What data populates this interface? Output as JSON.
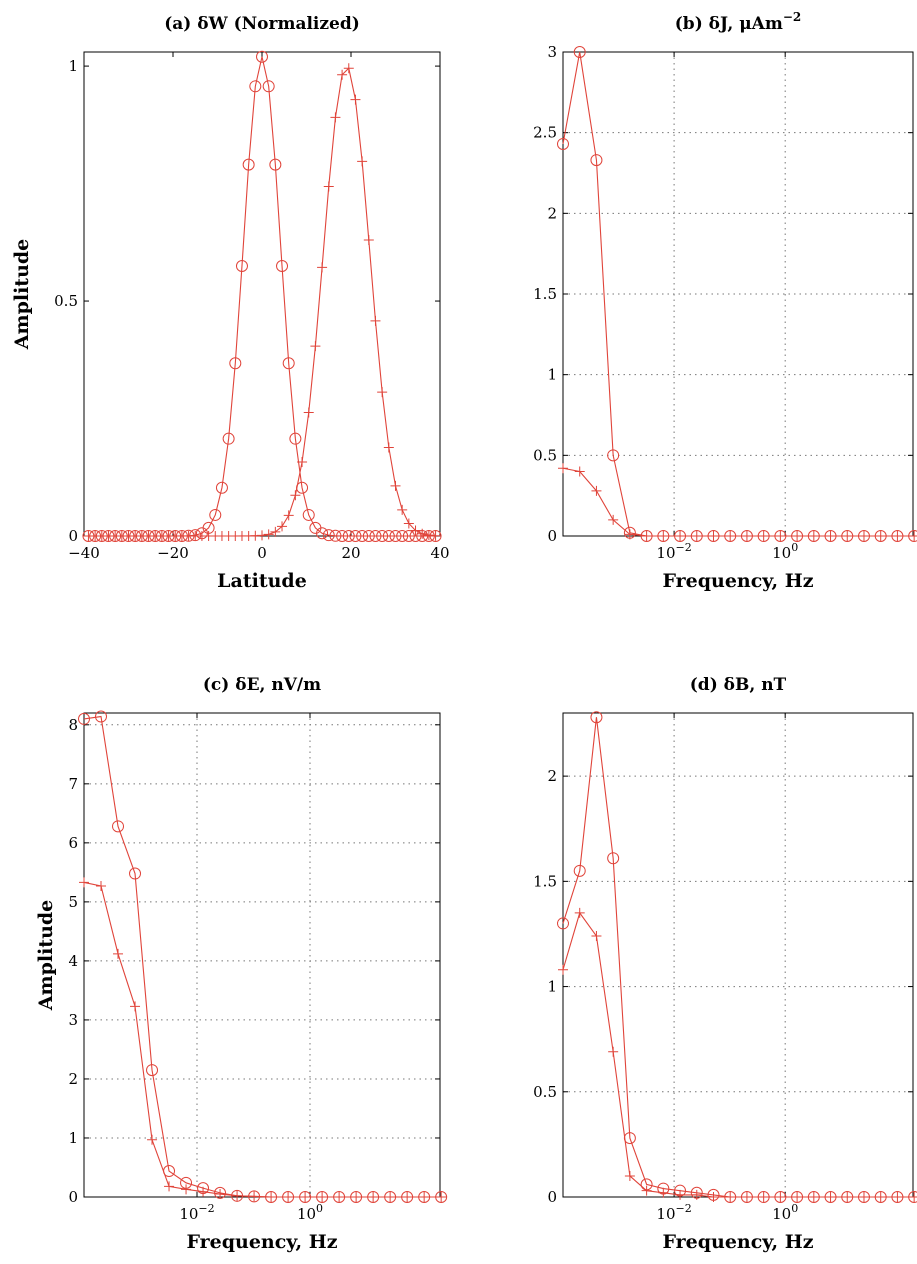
{
  "chart_data": [
    {
      "id": "a",
      "type": "line",
      "title": "(a) δW (Normalized)",
      "xlabel": "Latitude",
      "ylabel": "Amplitude",
      "xscale": "linear",
      "xlim": [
        -40,
        40
      ],
      "ylim": [
        0,
        1.03
      ],
      "grid": false,
      "xticks": [
        {
          "v": -40,
          "label": "−40"
        },
        {
          "v": -20,
          "label": "−20"
        },
        {
          "v": 0,
          "label": "0"
        },
        {
          "v": 20,
          "label": "20"
        },
        {
          "v": 40,
          "label": "40"
        }
      ],
      "yticks": [
        {
          "v": 0,
          "label": "0"
        },
        {
          "v": 0.5,
          "label": "0.5"
        },
        {
          "v": 1,
          "label": "1"
        }
      ],
      "series": [
        {
          "marker": "circle",
          "gauss": {
            "center": 0,
            "sigma": 4.2,
            "step": 1.5,
            "from": -39,
            "to": 39,
            "amplitude": 1.02
          }
        },
        {
          "marker": "plus",
          "gauss": {
            "center": 19,
            "sigma": 5.2,
            "step": 1.5,
            "from": -39,
            "to": 39,
            "amplitude": 1.0
          }
        }
      ]
    },
    {
      "id": "b",
      "type": "line",
      "title": "(b) δJ, μAm",
      "title_sup": "−2",
      "xlabel": "Frequency, Hz",
      "ylabel": "",
      "xscale": "log",
      "xlim": [
        0.0001,
        200
      ],
      "ylim": [
        0,
        3
      ],
      "grid": true,
      "xticks": [
        {
          "v": 0.01,
          "base": "10",
          "exp": "−2"
        },
        {
          "v": 1,
          "base": "10",
          "exp": "0"
        }
      ],
      "yticks": [
        {
          "v": 0,
          "label": "0"
        },
        {
          "v": 0.5,
          "label": "0.5"
        },
        {
          "v": 1,
          "label": "1"
        },
        {
          "v": 1.5,
          "label": "1.5"
        },
        {
          "v": 2,
          "label": "2"
        },
        {
          "v": 2.5,
          "label": "2.5"
        },
        {
          "v": 3,
          "label": "3"
        }
      ],
      "series": [
        {
          "marker": "circle",
          "x": [
            0.0001,
            0.0002,
            0.0004,
            0.0008,
            0.0016,
            0.0032,
            0.0064,
            0.0128,
            0.0256,
            0.0512,
            0.1024,
            0.2048,
            0.4096,
            0.8192,
            1.6384,
            3.2768,
            6.5536,
            13.1072,
            26.2144,
            52.4288,
            104.8576,
            209.7152
          ],
          "y": [
            2.43,
            3.0,
            2.33,
            0.5,
            0.02,
            0.0,
            0.0,
            0.0,
            0.0,
            0.0,
            0.0,
            0.0,
            0.0,
            0.0,
            0.0,
            0.0,
            0.0,
            0.0,
            0.0,
            0.0,
            0.0,
            0.0
          ]
        },
        {
          "marker": "plus",
          "x": [
            0.0001,
            0.0002,
            0.0004,
            0.0008,
            0.0016,
            0.0032,
            0.0064,
            0.0128,
            0.0256,
            0.0512,
            0.1024,
            0.2048,
            0.4096,
            0.8192,
            1.6384,
            3.2768,
            6.5536,
            13.1072,
            26.2144,
            52.4288,
            104.8576,
            209.7152
          ],
          "y": [
            0.42,
            0.4,
            0.28,
            0.1,
            0.01,
            0.0,
            0.0,
            0.0,
            0.0,
            0.0,
            0.0,
            0.0,
            0.0,
            0.0,
            0.0,
            0.0,
            0.0,
            0.0,
            0.0,
            0.0,
            0.0,
            0.0
          ]
        }
      ]
    },
    {
      "id": "c",
      "type": "line",
      "title": "(c) δE, nV/m",
      "xlabel": "Frequency, Hz",
      "ylabel": "Amplitude",
      "xscale": "log",
      "xlim": [
        0.0001,
        200
      ],
      "ylim": [
        0,
        8.2
      ],
      "grid": true,
      "xticks": [
        {
          "v": 0.01,
          "base": "10",
          "exp": "−2"
        },
        {
          "v": 1,
          "base": "10",
          "exp": "0"
        }
      ],
      "yticks": [
        {
          "v": 0,
          "label": "0"
        },
        {
          "v": 1,
          "label": "1"
        },
        {
          "v": 2,
          "label": "2"
        },
        {
          "v": 3,
          "label": "3"
        },
        {
          "v": 4,
          "label": "4"
        },
        {
          "v": 5,
          "label": "5"
        },
        {
          "v": 6,
          "label": "6"
        },
        {
          "v": 7,
          "label": "7"
        },
        {
          "v": 8,
          "label": "8"
        }
      ],
      "series": [
        {
          "marker": "circle",
          "x": [
            0.0001,
            0.0002,
            0.0004,
            0.0008,
            0.0016,
            0.0032,
            0.0064,
            0.0128,
            0.0256,
            0.0512,
            0.1024,
            0.2048,
            0.4096,
            0.8192,
            1.6384,
            3.2768,
            6.5536,
            13.1072,
            26.2144,
            52.4288,
            104.8576,
            209.7152
          ],
          "y": [
            8.1,
            8.14,
            6.28,
            5.48,
            2.15,
            0.44,
            0.24,
            0.15,
            0.07,
            0.02,
            0.01,
            0.0,
            0.0,
            0.0,
            0.0,
            0.0,
            0.0,
            0.0,
            0.0,
            0.0,
            0.0,
            0.0
          ]
        },
        {
          "marker": "plus",
          "x": [
            0.0001,
            0.0002,
            0.0004,
            0.0008,
            0.0016,
            0.0032,
            0.0064,
            0.0128,
            0.0256,
            0.0512,
            0.1024,
            0.2048,
            0.4096,
            0.8192,
            1.6384,
            3.2768,
            6.5536,
            13.1072,
            26.2144,
            52.4288,
            104.8576,
            209.7152
          ],
          "y": [
            5.33,
            5.27,
            4.12,
            3.23,
            0.97,
            0.18,
            0.13,
            0.09,
            0.05,
            0.02,
            0.01,
            0.0,
            0.0,
            0.0,
            0.0,
            0.0,
            0.0,
            0.0,
            0.0,
            0.0,
            0.0,
            0.0
          ]
        }
      ]
    },
    {
      "id": "d",
      "type": "line",
      "title": "(d) δB, nT",
      "xlabel": "Frequency, Hz",
      "ylabel": "",
      "xscale": "log",
      "xlim": [
        0.0001,
        200
      ],
      "ylim": [
        0,
        2.3
      ],
      "grid": true,
      "xticks": [
        {
          "v": 0.01,
          "base": "10",
          "exp": "−2"
        },
        {
          "v": 1,
          "base": "10",
          "exp": "0"
        }
      ],
      "yticks": [
        {
          "v": 0,
          "label": "0"
        },
        {
          "v": 0.5,
          "label": "0.5"
        },
        {
          "v": 1,
          "label": "1"
        },
        {
          "v": 1.5,
          "label": "1.5"
        },
        {
          "v": 2,
          "label": "2"
        }
      ],
      "series": [
        {
          "marker": "circle",
          "x": [
            0.0001,
            0.0002,
            0.0004,
            0.0008,
            0.0016,
            0.0032,
            0.0064,
            0.0128,
            0.0256,
            0.0512,
            0.1024,
            0.2048,
            0.4096,
            0.8192,
            1.6384,
            3.2768,
            6.5536,
            13.1072,
            26.2144,
            52.4288,
            104.8576,
            209.7152
          ],
          "y": [
            1.3,
            1.55,
            2.28,
            1.61,
            0.28,
            0.06,
            0.04,
            0.03,
            0.02,
            0.01,
            0.0,
            0.0,
            0.0,
            0.0,
            0.0,
            0.0,
            0.0,
            0.0,
            0.0,
            0.0,
            0.0,
            0.0
          ]
        },
        {
          "marker": "plus",
          "x": [
            0.0001,
            0.0002,
            0.0004,
            0.0008,
            0.0016,
            0.0032,
            0.0064,
            0.0128,
            0.0256,
            0.0512,
            0.1024,
            0.2048,
            0.4096,
            0.8192,
            1.6384,
            3.2768,
            6.5536,
            13.1072,
            26.2144,
            52.4288,
            104.8576,
            209.7152
          ],
          "y": [
            1.08,
            1.35,
            1.24,
            0.69,
            0.1,
            0.03,
            0.02,
            0.01,
            0.01,
            0.0,
            0.0,
            0.0,
            0.0,
            0.0,
            0.0,
            0.0,
            0.0,
            0.0,
            0.0,
            0.0,
            0.0,
            0.0
          ]
        }
      ]
    }
  ],
  "colors": {
    "series": "#e0443a",
    "axes": "#000000",
    "grid": "#777777"
  }
}
